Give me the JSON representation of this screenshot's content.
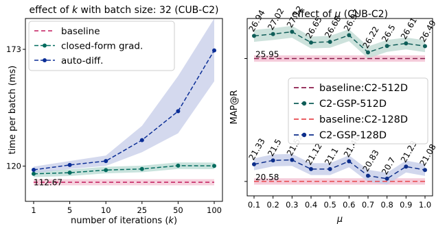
{
  "chart_data": [
    {
      "type": "line",
      "title": "effect of k with batch size: 32 (CUB-C2)",
      "title_parts": {
        "pre": "effect of ",
        "italic": "k",
        "post": " with batch size: 32 (CUB-C2)"
      },
      "xlabel": "number of iterations (k)",
      "xlabel_parts": {
        "pre": "number of iterations (",
        "italic": "k",
        "post": ")"
      },
      "ylabel": "time per batch (ms)",
      "categories": [
        "1",
        "5",
        "10",
        "25",
        "50",
        "100"
      ],
      "y_ticks": [
        120,
        173
      ],
      "ylim": [
        104,
        187
      ],
      "baseline_label": "112.67",
      "series": [
        {
          "name": "baseline",
          "values": [
            112.67,
            112.67,
            112.67,
            112.67,
            112.67,
            112.67
          ],
          "color": "#c2185b",
          "dash": "6,4",
          "marker": false,
          "band": 1.4
        },
        {
          "name": "closed-form grad.",
          "values": [
            116.5,
            117.0,
            118.2,
            118.7,
            120.2,
            120.1
          ],
          "color": "#006b5e",
          "dash": "6,3",
          "marker": true,
          "band": 1.5
        },
        {
          "name": "auto-diff.",
          "values": [
            118.3,
            120.5,
            122.3,
            131.8,
            144.9,
            172.5
          ],
          "color": "#0a2d96",
          "dash": "6,3",
          "marker": true,
          "band_lo": [
            1.5,
            1.8,
            2.2,
            5.5,
            10.0,
            14.0
          ],
          "band_hi": [
            1.5,
            1.8,
            2.5,
            6.5,
            16.0,
            14.5
          ]
        }
      ],
      "legend_position": "top-left",
      "colors": {
        "band_baseline": "#f4c7d6",
        "band_cf": "#bcdcd5",
        "band_ad": "#c5cce8"
      }
    },
    {
      "type": "line",
      "title": "effect of μ (CUB-C2)",
      "title_parts": {
        "pre": "effect of ",
        "italic": "μ",
        "post": " (CUB-C2)"
      },
      "xlabel": "μ",
      "ylabel": "MAP@R",
      "categories": [
        "0.1",
        "0.2",
        "0.3",
        "0.4",
        "0.5",
        "0.6",
        "0.7",
        "0.8",
        "0.9",
        "1.0"
      ],
      "y_ticks": [],
      "ylim": [
        19.95,
        27.7
      ],
      "annotations": {
        "baseline_512": "25.95",
        "baseline_128": "20.58"
      },
      "series": [
        {
          "name": "baseline:C2-512D",
          "values": [
            25.95,
            25.95,
            25.95,
            25.95,
            25.95,
            25.95,
            25.95,
            25.95,
            25.95,
            25.95
          ],
          "color": "#8b1a4a",
          "dash": "7,4",
          "marker": false
        },
        {
          "name": "C2-GSP-512D",
          "values": [
            26.94,
            27.02,
            27.12,
            26.65,
            26.68,
            26.97,
            26.22,
            26.5,
            26.61,
            26.49
          ],
          "labels": [
            "26.94",
            "27.02",
            "27.12",
            "26.65",
            "26.68",
            "26.97",
            "26.22",
            "26.5",
            "26.61",
            "26.49"
          ],
          "color": "#0f5d58",
          "dash": "7,4",
          "marker": true
        },
        {
          "name": "baseline:C2-128D",
          "values": [
            20.58,
            20.58,
            20.58,
            20.58,
            20.58,
            20.58,
            20.58,
            20.58,
            20.58,
            20.58
          ],
          "color": "#e8474d",
          "dash": "7,4",
          "marker": false
        },
        {
          "name": "C2-GSP-128D",
          "values": [
            21.33,
            21.5,
            21.52,
            21.12,
            21.12,
            21.46,
            20.83,
            20.7,
            21.23,
            21.08
          ],
          "labels": [
            "21.33",
            "21.5",
            "21.52",
            "21.12",
            "21.1",
            "21.46",
            "20.83",
            "20.7",
            "21.23",
            "21.08"
          ],
          "color": "#0c2d8a",
          "dash": "7,4",
          "marker": true
        }
      ],
      "legend_position": "center-right",
      "colors": {
        "band_baseline": "#f4c7d6",
        "band_gsp512": "#c4ddd6",
        "band_gsp128": "#c9d0ea"
      }
    }
  ]
}
